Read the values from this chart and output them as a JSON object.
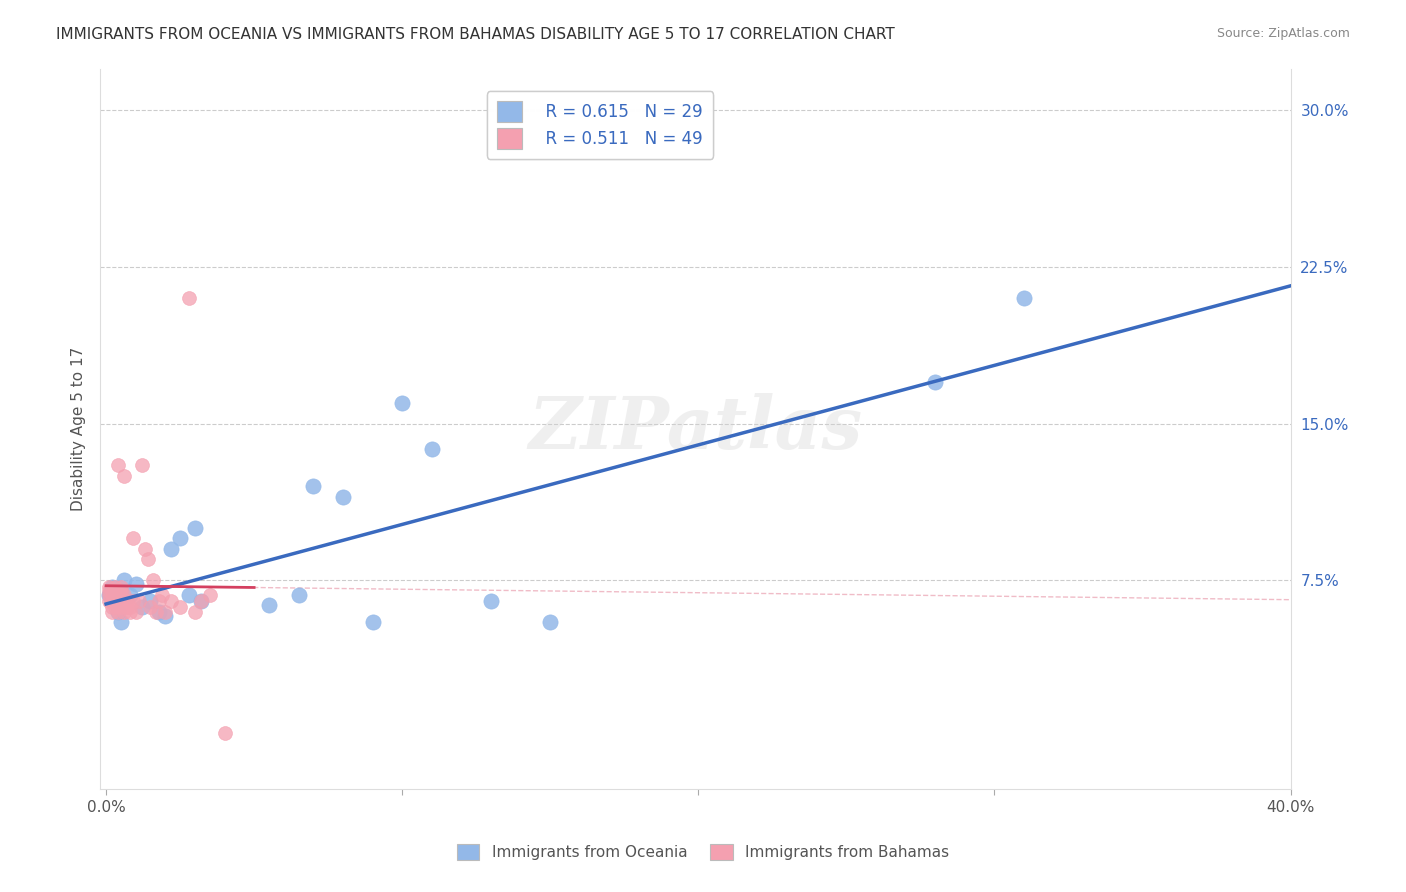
{
  "title": "IMMIGRANTS FROM OCEANIA VS IMMIGRANTS FROM BAHAMAS DISABILITY AGE 5 TO 17 CORRELATION CHART",
  "source": "Source: ZipAtlas.com",
  "ylabel": "Disability Age 5 to 17",
  "xlim": [
    0.0,
    0.4
  ],
  "ylim": [
    -0.025,
    0.32
  ],
  "xticks": [
    0.0,
    0.1,
    0.2,
    0.3,
    0.4
  ],
  "xticklabels": [
    "0.0%",
    "",
    "",
    "",
    "40.0%"
  ],
  "ytick_right": [
    0.075,
    0.15,
    0.225,
    0.3
  ],
  "ytick_right_labels": [
    "7.5%",
    "15.0%",
    "22.5%",
    "30.0%"
  ],
  "legend_blue_r": "R = 0.615",
  "legend_blue_n": "N = 29",
  "legend_pink_r": "R = 0.511",
  "legend_pink_n": "N = 49",
  "legend_label_blue": "Immigrants from Oceania",
  "legend_label_pink": "Immigrants from Bahamas",
  "blue_color": "#93b8e8",
  "pink_color": "#f4a0b0",
  "blue_line_color": "#3a6abf",
  "pink_line_color": "#d44060",
  "watermark": "ZIPatlas",
  "grid_color": "#cccccc",
  "oceania_x": [
    0.001,
    0.002,
    0.003,
    0.004,
    0.005,
    0.005,
    0.006,
    0.008,
    0.01,
    0.012,
    0.015,
    0.018,
    0.02,
    0.022,
    0.025,
    0.028,
    0.03,
    0.032,
    0.055,
    0.065,
    0.07,
    0.08,
    0.09,
    0.1,
    0.11,
    0.13,
    0.15,
    0.28,
    0.31
  ],
  "oceania_y": [
    0.068,
    0.072,
    0.065,
    0.06,
    0.055,
    0.07,
    0.075,
    0.068,
    0.073,
    0.062,
    0.065,
    0.06,
    0.058,
    0.09,
    0.095,
    0.068,
    0.1,
    0.065,
    0.063,
    0.068,
    0.12,
    0.115,
    0.055,
    0.16,
    0.138,
    0.065,
    0.055,
    0.17,
    0.21
  ],
  "bahamas_x": [
    0.001,
    0.001,
    0.001,
    0.001,
    0.002,
    0.002,
    0.002,
    0.002,
    0.002,
    0.003,
    0.003,
    0.003,
    0.003,
    0.004,
    0.004,
    0.004,
    0.005,
    0.005,
    0.005,
    0.005,
    0.005,
    0.006,
    0.006,
    0.006,
    0.006,
    0.007,
    0.007,
    0.008,
    0.008,
    0.009,
    0.009,
    0.01,
    0.011,
    0.012,
    0.013,
    0.014,
    0.015,
    0.016,
    0.017,
    0.018,
    0.019,
    0.02,
    0.022,
    0.025,
    0.028,
    0.03,
    0.032,
    0.035,
    0.04
  ],
  "bahamas_y": [
    0.065,
    0.068,
    0.07,
    0.072,
    0.06,
    0.062,
    0.065,
    0.068,
    0.07,
    0.062,
    0.065,
    0.068,
    0.072,
    0.06,
    0.065,
    0.13,
    0.062,
    0.065,
    0.068,
    0.07,
    0.072,
    0.06,
    0.065,
    0.068,
    0.125,
    0.062,
    0.065,
    0.06,
    0.062,
    0.065,
    0.095,
    0.06,
    0.065,
    0.13,
    0.09,
    0.085,
    0.062,
    0.075,
    0.06,
    0.065,
    0.068,
    0.06,
    0.065,
    0.062,
    0.21,
    0.06,
    0.065,
    0.068,
    0.002
  ]
}
